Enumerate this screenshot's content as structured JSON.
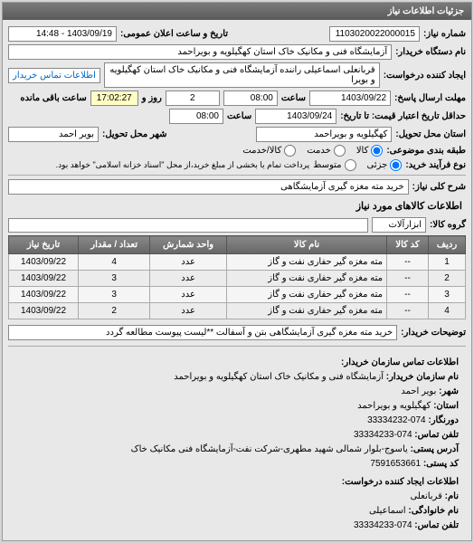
{
  "panel": {
    "header": "جزئیات اطلاعات نیاز"
  },
  "fields": {
    "need_number_label": "شماره نیاز:",
    "need_number": "1103020022000015",
    "announce_label": "تاریخ و ساعت اعلان عمومی:",
    "announce_value": "1403/09/19 - 14:48",
    "buyer_org_label": "نام دستگاه خریدار:",
    "buyer_org": "آزمایشگاه فنی و مکانیک خاک استان کهگیلویه و بویراحمد",
    "creator_label": "ایجاد کننده درخواست:",
    "creator": "قربانعلی اسماعیلی راننده آزمایشگاه فنی و مکانیک خاک استان کهگیلویه و بویرا",
    "contact_link": "اطلاعات تماس خریدار",
    "deadline_label": "مهلت ارسال پاسخ:",
    "deadline_to_label": "تا تاریخ:",
    "deadline_date": "1403/09/22",
    "time_label": "ساعت",
    "deadline_time": "08:00",
    "day_label": "روز و",
    "days": "2",
    "remaining_time": "17:02:27",
    "remaining_label": "ساعت باقی مانده",
    "validity_label": "حداقل تاریخ اعتبار قیمت: تا تاریخ:",
    "validity_date": "1403/09/24",
    "validity_time": "08:00",
    "province_label": "استان محل تحویل:",
    "province": "کهگیلویه و بویراحمد",
    "city_label": "شهر محل تحویل:",
    "city": "بویر احمد",
    "category_label": "طبقه بندی موضوعی:",
    "cat_goods": "کالا",
    "cat_service": "خدمت",
    "cat_goods_service": "کالا/خدمت",
    "process_label": "نوع فرآیند خرید:",
    "proc_small": "جزئی",
    "proc_medium": "متوسط",
    "proc_note": "پرداخت تمام یا بخشی از مبلغ خرید،از محل \"اسناد خزانه اسلامی\" خواهد بود.",
    "summary_label": "شرح کلی نیاز:",
    "summary": "خرید مته مغزه گیری آزمایشگاهی",
    "goods_section": "اطلاعات کالاهای مورد نیاز",
    "goods_group_label": "گروه کالا:",
    "goods_group": "ابزارآلات",
    "buyer_desc_label": "توضیحات خریدار:",
    "buyer_desc": "خرید مته مغزه گیری آزمایشگاهی بتن و آسفالت **لیست پیوست مطالعه گردد"
  },
  "table": {
    "headers": {
      "row": "ردیف",
      "code": "کد کالا",
      "name": "نام کالا",
      "unit": "واحد شمارش",
      "qty": "تعداد / مقدار",
      "date": "تاریخ نیاز"
    },
    "rows": [
      {
        "row": "1",
        "code": "--",
        "name": "مته مغزه گیر حفاری نفت و گاز",
        "unit": "عدد",
        "qty": "4",
        "date": "1403/09/22"
      },
      {
        "row": "2",
        "code": "--",
        "name": "مته مغزه گیر حفاری نفت و گاز",
        "unit": "عدد",
        "qty": "3",
        "date": "1403/09/22"
      },
      {
        "row": "3",
        "code": "--",
        "name": "مته مغزه گیر حفاری نفت و گاز",
        "unit": "عدد",
        "qty": "3",
        "date": "1403/09/22"
      },
      {
        "row": "4",
        "code": "--",
        "name": "مته مغزه گیر حفاری نفت و گاز",
        "unit": "عدد",
        "qty": "2",
        "date": "1403/09/22"
      }
    ]
  },
  "contact": {
    "header": "اطلاعات تماس سازمان خریدار:",
    "org_label": "نام سازمان خریدار:",
    "org": "آزمایشگاه فنی و مکانیک خاک استان کهگیلویه و بویراحمد",
    "city_label": "شهر:",
    "city": "بویر احمد",
    "province_label": "استان:",
    "province": "کهگیلویه و بویراحمد",
    "fax_label": "دورنگار:",
    "fax": "074-33334232",
    "phone_label": "تلفن تماس:",
    "phone": "074-33334233",
    "address_label": "آدرس پستی:",
    "address": "یاسوج-بلوار شمالی شهید مطهری-شرکت نفت-آزمایشگاه فنی مکانیک خاک",
    "postal_label": "کد پستی:",
    "postal": "7591653661",
    "requester_header": "اطلاعات ایجاد کننده درخواست:",
    "fname_label": "نام:",
    "fname": "قربانعلی",
    "lname_label": "نام خانوادگی:",
    "lname": "اسماعیلی",
    "rphone_label": "تلفن تماس:",
    "rphone": "074-33334233"
  }
}
